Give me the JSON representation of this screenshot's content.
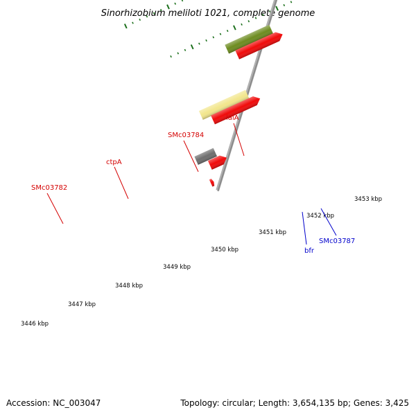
{
  "title": "Sinorhizobium meliloti 1021, complete genome",
  "footer": {
    "accession": "Accession: NC_003047",
    "summary": "Topology: circular; Length: 3,654,135 bp; Genes: 3,425"
  },
  "scale": {
    "labels": [
      "3446 kbp",
      "3447 kbp",
      "3448 kbp",
      "3449 kbp",
      "3450 kbp",
      "3451 kbp",
      "3452 kbp",
      "3453 kbp"
    ]
  },
  "labels": {
    "red_color": "#d40000",
    "blue_color": "#0000cc",
    "top": [
      {
        "text": "SMc03782"
      },
      {
        "text": "ctpA"
      },
      {
        "text": "SMc03784"
      },
      {
        "text": "ialA"
      }
    ],
    "bottom": [
      {
        "text": "bfr"
      },
      {
        "text": "SMc03787"
      }
    ]
  },
  "feature_colors": {
    "cds_red": "#f00a0a",
    "gene_gray": "#6e6e6e",
    "gene_yellow": "#f2e68c",
    "gene_olive": "#6d8c20",
    "gene_lightgray": "#c0c0c0",
    "gene_pink": "#e0207a",
    "gene_blue": "#1a1aee",
    "gene_indigo": "#4a3f8f",
    "backbone": "#8a8a8a",
    "tick": "#1b6f1b"
  }
}
